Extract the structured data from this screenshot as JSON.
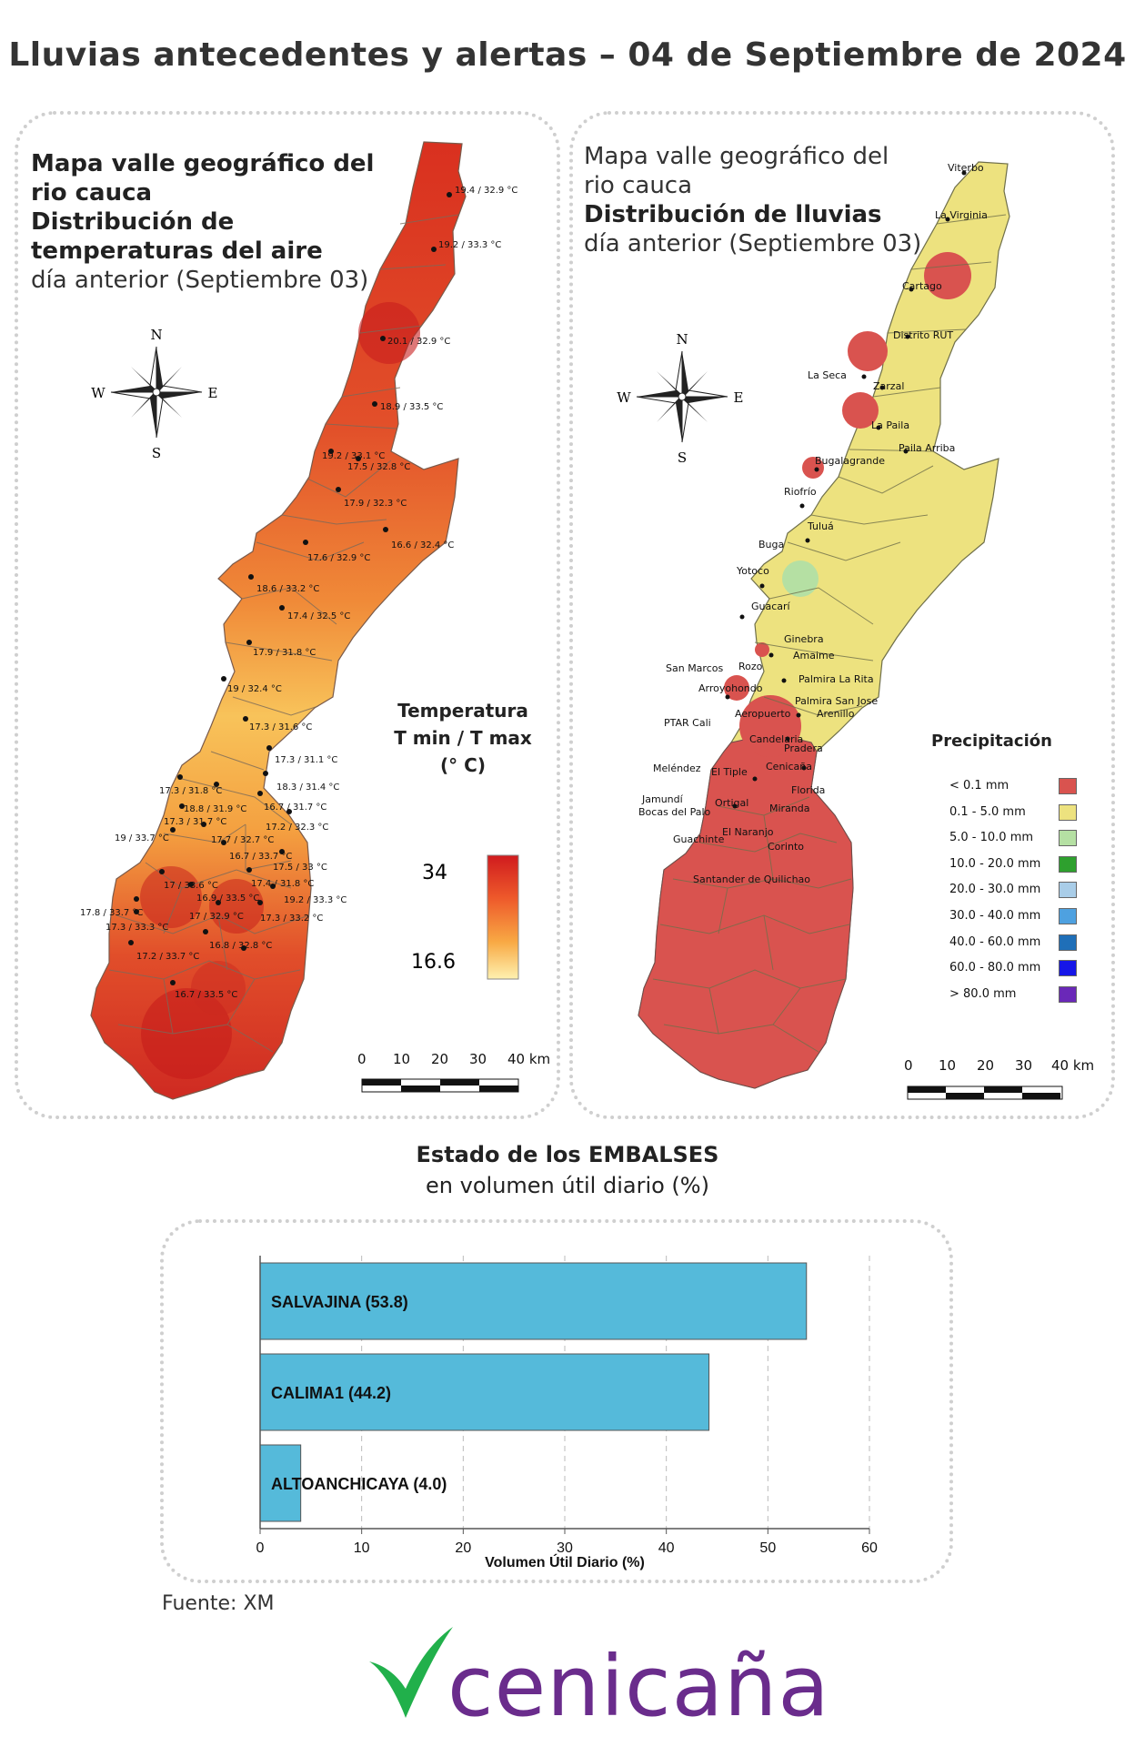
{
  "title": "Lluvias antecedentes y alertas – 04 de Septiembre de 2024",
  "left_panel": {
    "title_bold_1": "Mapa valle geográfico del",
    "title_bold_2": "rio cauca",
    "title_bold_3": "Distribución de",
    "title_bold_4": "temperaturas del aire",
    "subtitle": "día anterior (Septiembre 03)",
    "compass": {
      "n": "N",
      "s": "S",
      "e": "E",
      "w": "W"
    },
    "legend": {
      "title_1": "Temperatura",
      "title_2": "T min / T max",
      "title_3": "(° C)",
      "max": "34",
      "min": "16.6",
      "colors": [
        "#c4161c",
        "#e8432a",
        "#f59a3a",
        "#fde89a"
      ]
    },
    "scale": {
      "labels": [
        "0",
        "10",
        "20",
        "30",
        "40 km"
      ]
    },
    "stations": [
      "19.4 / 32.9 °C",
      "19.2 / 33.3 °C",
      "20.1 / 32.9 °C",
      "18.9 / 33.5 °C",
      "19.2 / 33.1 °C",
      "17.5 / 32.8 °C",
      "17.9 / 32.3 °C",
      "16.6 / 32.4 °C",
      "17.6 / 32.9 °C",
      "18.6 / 33.2 °C",
      "17.4 / 32.5 °C",
      "17.9 / 31.8 °C",
      "19 / 32.4 °C",
      "17.3 / 31.6 °C",
      "17.3 / 31.1 °C",
      "18.3 / 31.4 °C",
      "17.3 / 31.8 °C",
      "18.8 / 31.9 °C",
      "16.7 / 31.7 °C",
      "17.3 / 31.7 °C",
      "17.2 / 32.3 °C",
      "19 / 33.7 °C",
      "17.7 / 32.7 °C",
      "16.7 / 33.7 °C",
      "17.5 / 33 °C",
      "17 / 33.6 °C",
      "17.4 / 31.8 °C",
      "16.9 / 33.5 °C",
      "19.2 / 33.3 °C",
      "17.8 / 33.7 °C",
      "17 / 32.9 °C",
      "17.3 / 33.3 °C",
      "17.3 / 33.2 °C",
      "16.8 / 32.8 °C",
      "17.2 / 33.7 °C",
      "16.7 / 33.5 °C"
    ]
  },
  "right_panel": {
    "title_bold_1": "Mapa valle geográfico del",
    "title_bold_2": "rio cauca",
    "title_bold_3": "Distribución de lluvias",
    "subtitle": "día anterior (Septiembre 03)",
    "compass": {
      "n": "N",
      "s": "S",
      "e": "E",
      "w": "W"
    },
    "legend_title": "Precipitación",
    "legend": [
      {
        "label": "< 0.1 mm",
        "color": "#d9534f"
      },
      {
        "label": "0.1 - 5.0 mm",
        "color": "#ede27f"
      },
      {
        "label": "5.0 - 10.0 mm",
        "color": "#b5e0a3"
      },
      {
        "label": "10.0 - 20.0 mm",
        "color": "#2ea02e"
      },
      {
        "label": "20.0 - 30.0 mm",
        "color": "#a9cde8"
      },
      {
        "label": "30.0 - 40.0 mm",
        "color": "#4ea1e0"
      },
      {
        "label": "40.0 - 60.0 mm",
        "color": "#1f6fb8"
      },
      {
        "label": "60.0 - 80.0 mm",
        "color": "#1616e8"
      },
      {
        "label": "> 80.0 mm",
        "color": "#6a28b8"
      }
    ],
    "scale": {
      "labels": [
        "0",
        "10",
        "20",
        "30",
        "40 km"
      ]
    },
    "places": [
      "Viterbo",
      "La Virginia",
      "Cartago",
      "Distrito RUT",
      "La Seca",
      "Zarzal",
      "La Paila",
      "Paila Arriba",
      "Bugalagrande",
      "Riofrío",
      "Tuluá",
      "Buga",
      "Yotoco",
      "Guacarí",
      "Ginebra",
      "San Marcos",
      "Amaime",
      "Rozo",
      "Palmira La Rita",
      "Arroyohondo",
      "Palmira San Jose",
      "Aeropuerto",
      "Arenillo",
      "PTAR Cali",
      "Candelaria",
      "Pradera",
      "Cenicaña",
      "Meléndez",
      "El Tiple",
      "Florida",
      "Jamundí",
      "Bocas del Palo",
      "Ortigal",
      "Miranda",
      "Guachinte",
      "El Naranjo",
      "Corinto",
      "Santander de Quilichao"
    ]
  },
  "embalses": {
    "title_bold": "Estado de los EMBALSES",
    "subtitle": "en volumen útil diario (%)"
  },
  "chart_data": {
    "type": "bar",
    "orientation": "horizontal",
    "categories": [
      "SALVAJINA",
      "CALIMA1",
      "ALTOANCHICAYA"
    ],
    "bar_labels": [
      "SALVAJINA (53.8)",
      "CALIMA1 (44.2)",
      "ALTOANCHICAYA (4.0)"
    ],
    "values": [
      53.8,
      44.2,
      4.0
    ],
    "xlabel": "Volumen Útil Diario (%)",
    "xlim": [
      0,
      60
    ],
    "xticks": [
      "0",
      "10",
      "20",
      "30",
      "40",
      "50",
      "60"
    ],
    "grid": true,
    "bar_color": "#55bada"
  },
  "source": "Fuente: XM",
  "logo": {
    "text": "cenicaña",
    "color": "#6a2c8c",
    "check_color": "#21b04b"
  }
}
